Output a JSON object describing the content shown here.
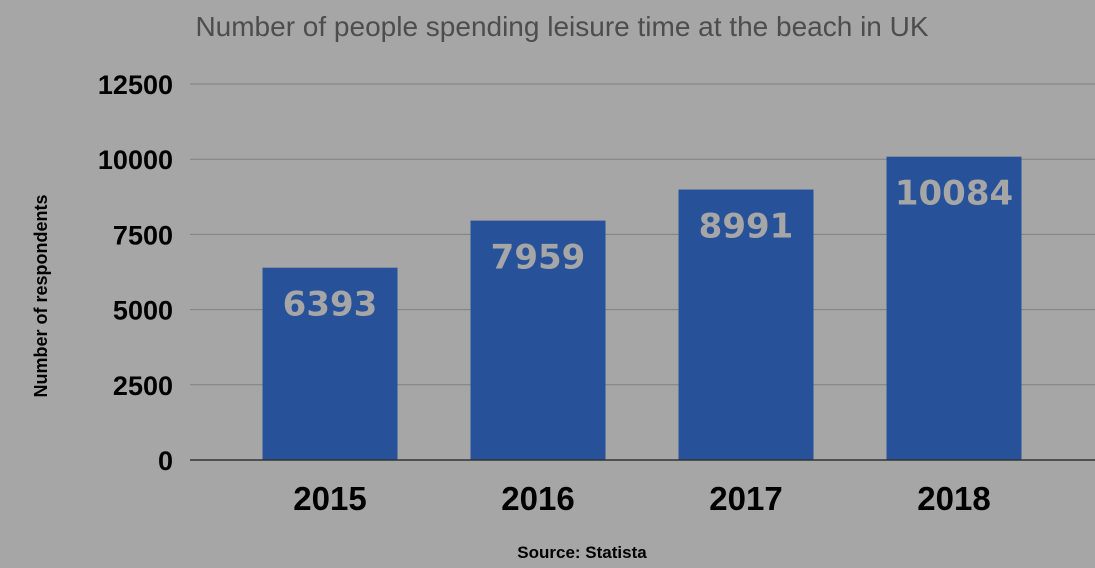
{
  "chart_data": {
    "type": "bar",
    "title": "Number of people spending leisure time at the beach in UK",
    "xlabel": "",
    "ylabel": "Number of  respondents",
    "source": "Source: Statista",
    "categories": [
      "2015",
      "2016",
      "2017",
      "2018"
    ],
    "values": [
      6393,
      7959,
      8991,
      10084
    ],
    "data_labels": [
      "6393",
      "7959",
      "8991",
      "10084"
    ],
    "yticks": [
      "0",
      "2500",
      "5000",
      "7500",
      "10000",
      "12500"
    ],
    "ylim": [
      0,
      12500
    ],
    "grid": true,
    "legend": "none",
    "colors": {
      "bar": "#27529a",
      "background": "#a6a6a6",
      "grid": "#808080",
      "axis": "#333333",
      "data_label": "#a6a6a6"
    }
  }
}
